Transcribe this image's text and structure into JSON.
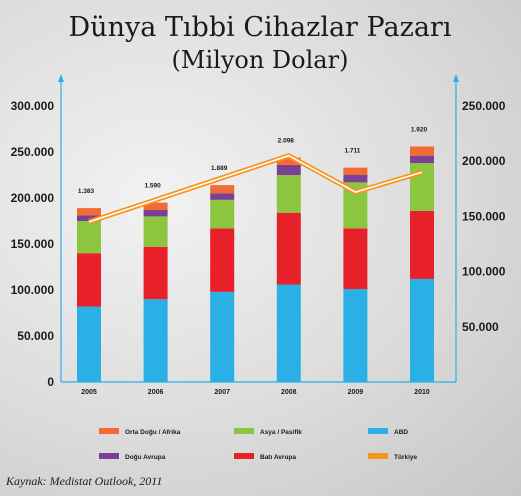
{
  "title_line1": "Dünya Tıbbi Cihazlar Pazarı",
  "title_line2": "(Milyon Dolar)",
  "source": "Kaynak: Medistat Outlook, 2011",
  "colors": {
    "abd": "#2ab0e6",
    "bati_avrupa": "#e8202a",
    "asya_pasifik": "#8cc63f",
    "dogu_avrupa": "#7b3f98",
    "orta_dogu_afrika": "#f26b35",
    "turkiye": "#f7941d",
    "axis": "#2ab0e6"
  },
  "chart_data": {
    "type": "bar",
    "stacked": true,
    "categories": [
      "2005",
      "2006",
      "2007",
      "2008",
      "2009",
      "2010"
    ],
    "ylim": [
      0,
      300000
    ],
    "yticks": [
      "0",
      "50.000",
      "100.000",
      "150.000",
      "200.000",
      "250.000",
      "300.000"
    ],
    "ylim_right": [
      0,
      250000
    ],
    "yticks_right": [
      "50.000",
      "100.000",
      "150.000",
      "200.000",
      "250.000"
    ],
    "series": [
      {
        "name": "ABD",
        "key": "abd",
        "values": [
          82000,
          90000,
          98000,
          106000,
          101000,
          112000
        ]
      },
      {
        "name": "Batı Avrupa",
        "key": "bati_avrupa",
        "values": [
          58000,
          57000,
          69000,
          78000,
          66000,
          74000
        ]
      },
      {
        "name": "Asya / Pasifik",
        "key": "asya_pasifik",
        "values": [
          35000,
          33000,
          31000,
          41000,
          50000,
          52000
        ]
      },
      {
        "name": "Doğu Avrupa",
        "key": "dogu_avrupa",
        "values": [
          6000,
          7000,
          7000,
          11000,
          8000,
          8000
        ]
      },
      {
        "name": "Orta Doğu / Afrika",
        "key": "orta_dogu_afrika",
        "values": [
          8000,
          8000,
          9000,
          8000,
          8000,
          10000
        ]
      }
    ],
    "line_series": {
      "name": "Türkiye",
      "key": "turkiye",
      "axis": "right",
      "values": [
        145000,
        165000,
        185000,
        205000,
        172000,
        190000
      ],
      "labels": [
        "1.383",
        "1.590",
        "1.889",
        "2.098",
        "1.711",
        "1.920"
      ]
    },
    "legend": [
      {
        "name": "Orta Doğu / Afrika",
        "key": "orta_dogu_afrika"
      },
      {
        "name": "Asya / Pasifik",
        "key": "asya_pasifik"
      },
      {
        "name": "ABD",
        "key": "abd"
      },
      {
        "name": "Doğu Avrupa",
        "key": "dogu_avrupa"
      },
      {
        "name": "Batı Avrupa",
        "key": "bati_avrupa"
      },
      {
        "name": "Türkiye",
        "key": "turkiye"
      }
    ]
  }
}
